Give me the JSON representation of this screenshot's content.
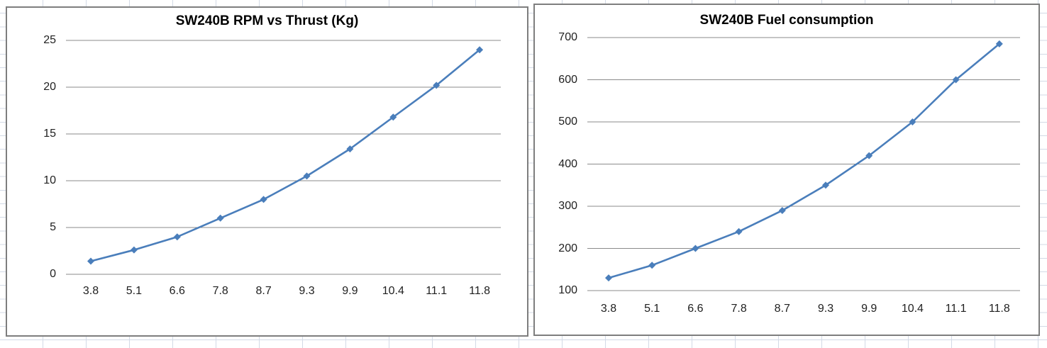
{
  "page": {
    "grid_line_color": "#d3dae6",
    "chart_border_color": "#7e7e7e",
    "plot_gridline_color": "#8b8b8b",
    "accent_color": "#4a7ebb"
  },
  "chart_data": [
    {
      "type": "line",
      "title": "SW240B RPM vs Thrust (Kg)",
      "categories": [
        "3.8",
        "5.1",
        "6.6",
        "7.8",
        "8.7",
        "9.3",
        "9.9",
        "10.4",
        "11.1",
        "11.8"
      ],
      "series": [
        {
          "name": "Thrust (Kg)",
          "values": [
            1.4,
            2.6,
            4,
            6,
            8,
            10.5,
            13.4,
            16.8,
            20.2,
            24
          ]
        }
      ],
      "xlabel": "",
      "ylabel": "",
      "ylim": [
        0,
        25
      ],
      "yticks": [
        0,
        5,
        10,
        15,
        20,
        25
      ],
      "grid": true,
      "legend_position": "none",
      "line_color": "#4a7ebb",
      "marker": "diamond"
    },
    {
      "type": "line",
      "title": "SW240B Fuel consumption",
      "categories": [
        "3.8",
        "5.1",
        "6.6",
        "7.8",
        "8.7",
        "9.3",
        "9.9",
        "10.4",
        "11.1",
        "11.8"
      ],
      "series": [
        {
          "name": "Fuel consumption",
          "values": [
            130,
            160,
            200,
            240,
            290,
            350,
            420,
            500,
            600,
            685
          ]
        }
      ],
      "xlabel": "",
      "ylabel": "",
      "ylim": [
        100,
        700
      ],
      "yticks": [
        100,
        200,
        300,
        400,
        500,
        600,
        700
      ],
      "grid": true,
      "legend_position": "none",
      "line_color": "#4a7ebb",
      "marker": "diamond"
    }
  ]
}
